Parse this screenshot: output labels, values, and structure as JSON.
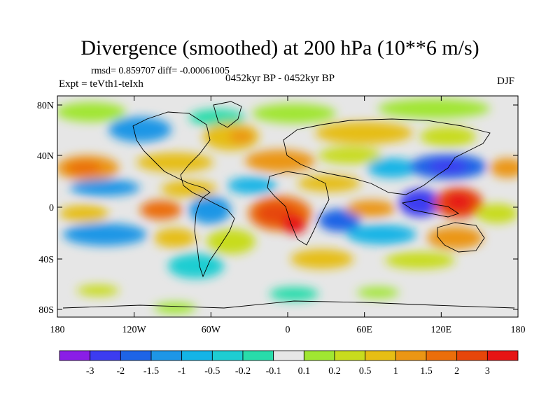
{
  "title": "Divergence (smoothed) at 200 hPa (10**6 m/s)",
  "stats_line": "rmsd= 0.859707 diff= -0.00061005",
  "period": "0452kyr BP - 0452kyr BP",
  "experiment": "Expt = teVth1-teIxh",
  "season": "DJF",
  "lat_ticks": [
    "80N",
    "40N",
    "0",
    "40S",
    "80S"
  ],
  "lon_ticks": [
    "180",
    "120W",
    "60W",
    "0",
    "60E",
    "120E",
    "180"
  ],
  "colorbar": {
    "labels": [
      "-3",
      "-2",
      "-1.5",
      "-1",
      "-0.5",
      "-0.2",
      "-0.1",
      "0.1",
      "0.2",
      "0.5",
      "1",
      "1.5",
      "2",
      "3"
    ],
    "colors": [
      "#8a1ee6",
      "#3c3cf0",
      "#1e64e6",
      "#1e96e6",
      "#14b4e6",
      "#1ecdd2",
      "#28dcaa",
      "#e6e6e6",
      "#a0e632",
      "#c8dc1e",
      "#e6be14",
      "#eb9614",
      "#eb6e0a",
      "#e6460a",
      "#e61414"
    ]
  },
  "colors": {
    "land_outline": "#000000",
    "background": "#e6e6e6"
  }
}
